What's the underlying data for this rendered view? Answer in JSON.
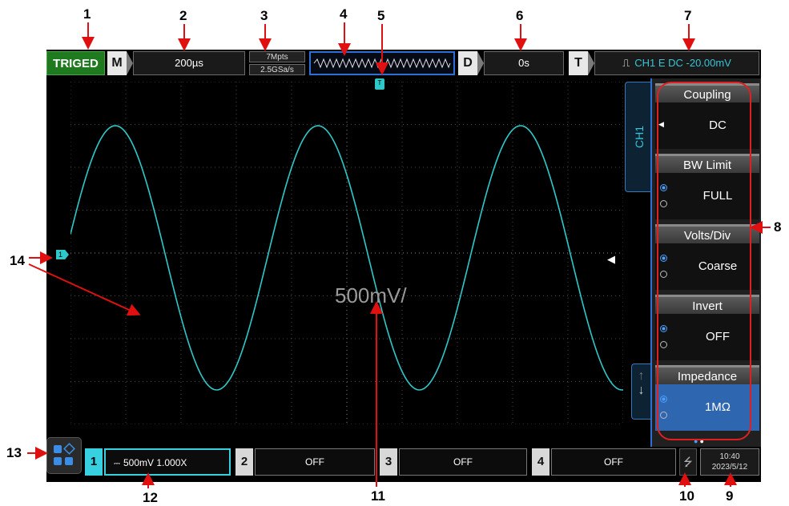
{
  "callouts": [
    "1",
    "2",
    "3",
    "4",
    "5",
    "6",
    "7",
    "8",
    "9",
    "10",
    "11",
    "12",
    "13",
    "14"
  ],
  "top_bar": {
    "status": "TRIGED",
    "mode_letter": "M",
    "timebase": "200µs",
    "memory_depth": "7Mpts",
    "sample_rate": "2.5GSa/s",
    "delay_letter": "D",
    "delay_value": "0s",
    "trigger_letter": "T",
    "trigger_info": "CH1 E DC -20.00mV"
  },
  "display": {
    "center_label": "500mV/",
    "trigger_marker": "T",
    "channel_marker": "1",
    "trace_color": "#2fc8c8"
  },
  "side_menu": {
    "tab_label": "CH1",
    "items": [
      {
        "title": "Coupling",
        "value": "DC"
      },
      {
        "title": "BW Limit",
        "value": "FULL"
      },
      {
        "title": "Volts/Div",
        "value": "Coarse"
      },
      {
        "title": "Invert",
        "value": "OFF"
      },
      {
        "title": "Impedance",
        "value": "1MΩ"
      }
    ]
  },
  "bottom_bar": {
    "channels": [
      {
        "num": "1",
        "text": "500mV 1.000X"
      },
      {
        "num": "2",
        "text": "OFF"
      },
      {
        "num": "3",
        "text": "OFF"
      },
      {
        "num": "4",
        "text": "OFF"
      }
    ],
    "time": "10:40",
    "date": "2023/5/12"
  }
}
